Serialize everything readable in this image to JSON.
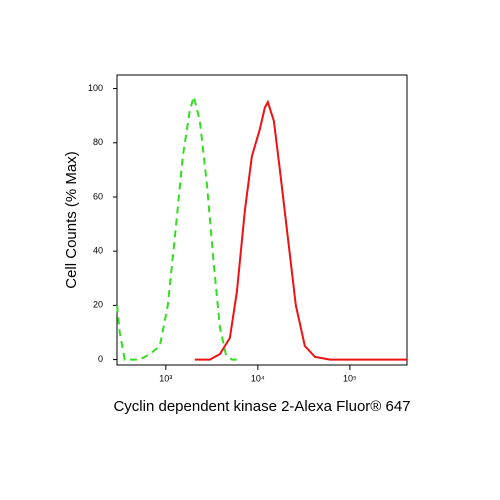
{
  "chart_data": {
    "type": "line",
    "log_x": true,
    "xlabel": "Cyclin dependent kinase 2-Alexa Fluor® 647",
    "ylabel": "Cell Counts (% Max)",
    "xlim": [
      295,
      417000
    ],
    "ylim": [
      -2,
      105
    ],
    "xticks": [
      {
        "value": 1000,
        "label": "10³"
      },
      {
        "value": 10000,
        "label": "10⁴"
      },
      {
        "value": 100000,
        "label": "10⁵"
      }
    ],
    "yticks": [
      0,
      20,
      40,
      60,
      80,
      100
    ],
    "series": [
      {
        "color": "#33dd22",
        "dashed": true,
        "x": [
          295,
          316,
          358,
          521,
          670,
          861,
          1051,
          1253,
          1531,
          1824,
          2016,
          2343,
          2791,
          3327,
          3866,
          4487,
          5212,
          6000
        ],
        "values": [
          20,
          10,
          0,
          0,
          2,
          5,
          20,
          45,
          75,
          92,
          97,
          88,
          65,
          35,
          12,
          2,
          0,
          0
        ]
      },
      {
        "color": "#ee1111",
        "dashed": false,
        "x": [
          2066,
          3008,
          3866,
          4966,
          5916,
          7228,
          8610,
          10510,
          11920,
          12850,
          14930,
          17350,
          21180,
          25860,
          32400,
          41690,
          60650,
          417000
        ],
        "values": [
          0,
          0,
          2,
          8,
          25,
          55,
          75,
          85,
          93,
          95,
          88,
          70,
          45,
          20,
          5,
          1,
          0,
          0
        ]
      }
    ]
  }
}
